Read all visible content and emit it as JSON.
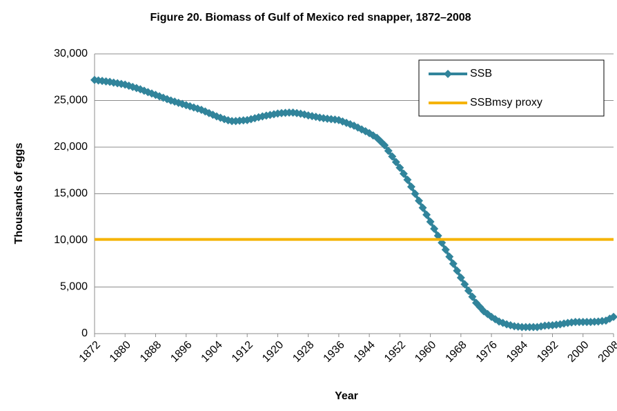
{
  "chart_data": {
    "type": "line",
    "title": "Figure 20. Biomass of Gulf of Mexico red snapper, 1872–2008",
    "x_label": "Year",
    "y_label": "Thousands of eggs",
    "xlim": [
      1872,
      2008
    ],
    "xticks": [
      1872,
      1880,
      1888,
      1896,
      1904,
      1912,
      1920,
      1928,
      1936,
      1944,
      1952,
      1960,
      1968,
      1976,
      1984,
      1992,
      2000,
      2008
    ],
    "ylim": [
      0,
      30000
    ],
    "yticks": [
      0,
      {
        "value": 5000,
        "label": "5,000"
      },
      {
        "value": 10000,
        "label": "10,000"
      },
      {
        "value": 15000,
        "label": "15,000"
      },
      {
        "value": 20000,
        "label": "20,000"
      },
      {
        "value": 25000,
        "label": "25,000"
      },
      {
        "value": 30000,
        "label": "30,000"
      }
    ],
    "grid": true,
    "legend": "top-right",
    "series": [
      {
        "name": "SSB",
        "color": "#31849b",
        "marker": "diamond",
        "x": [
          1872,
          1873,
          1874,
          1875,
          1876,
          1877,
          1878,
          1879,
          1880,
          1881,
          1882,
          1883,
          1884,
          1885,
          1886,
          1887,
          1888,
          1889,
          1890,
          1891,
          1892,
          1893,
          1894,
          1895,
          1896,
          1897,
          1898,
          1899,
          1900,
          1901,
          1902,
          1903,
          1904,
          1905,
          1906,
          1907,
          1908,
          1909,
          1910,
          1911,
          1912,
          1913,
          1914,
          1915,
          1916,
          1917,
          1918,
          1919,
          1920,
          1921,
          1922,
          1923,
          1924,
          1925,
          1926,
          1927,
          1928,
          1929,
          1930,
          1931,
          1932,
          1933,
          1934,
          1935,
          1936,
          1937,
          1938,
          1939,
          1940,
          1941,
          1942,
          1943,
          1944,
          1945,
          1946,
          1947,
          1948,
          1949,
          1950,
          1951,
          1952,
          1953,
          1954,
          1955,
          1956,
          1957,
          1958,
          1959,
          1960,
          1961,
          1962,
          1963,
          1964,
          1965,
          1966,
          1967,
          1968,
          1969,
          1970,
          1971,
          1972,
          1973,
          1974,
          1975,
          1976,
          1977,
          1978,
          1979,
          1980,
          1981,
          1982,
          1983,
          1984,
          1985,
          1986,
          1987,
          1988,
          1989,
          1990,
          1991,
          1992,
          1993,
          1994,
          1995,
          1996,
          1997,
          1998,
          1999,
          2000,
          2001,
          2002,
          2003,
          2004,
          2005,
          2006,
          2007,
          2008
        ],
        "values": [
          27200,
          27150,
          27100,
          27050,
          27000,
          26920,
          26850,
          26780,
          26700,
          26580,
          26450,
          26330,
          26200,
          26050,
          25900,
          25750,
          25600,
          25450,
          25300,
          25150,
          25000,
          24880,
          24750,
          24630,
          24500,
          24380,
          24250,
          24130,
          24000,
          23820,
          23650,
          23470,
          23300,
          23150,
          23000,
          22880,
          22800,
          22800,
          22830,
          22870,
          22900,
          23000,
          23100,
          23200,
          23300,
          23380,
          23450,
          23530,
          23600,
          23650,
          23680,
          23700,
          23700,
          23650,
          23580,
          23500,
          23400,
          23320,
          23250,
          23170,
          23100,
          23050,
          23000,
          22950,
          22900,
          22750,
          22600,
          22450,
          22300,
          22100,
          21900,
          21700,
          21500,
          21250,
          21000,
          20600,
          20200,
          19600,
          19000,
          18400,
          17800,
          17150,
          16500,
          15750,
          15000,
          14250,
          13500,
          12750,
          12000,
          11250,
          10500,
          9750,
          9000,
          8250,
          7500,
          6750,
          6000,
          5300,
          4600,
          3950,
          3300,
          2850,
          2400,
          2100,
          1800,
          1550,
          1300,
          1150,
          1000,
          900,
          800,
          750,
          700,
          700,
          700,
          700,
          700,
          780,
          850,
          880,
          900,
          950,
          1000,
          1080,
          1150,
          1200,
          1250,
          1250,
          1250,
          1250,
          1250,
          1280,
          1300,
          1350,
          1400,
          1600,
          1800
        ]
      },
      {
        "name": "SSBmsy proxy",
        "color": "#f5b301",
        "x": [
          1872,
          2008
        ],
        "values": [
          10100,
          10100
        ]
      }
    ]
  }
}
